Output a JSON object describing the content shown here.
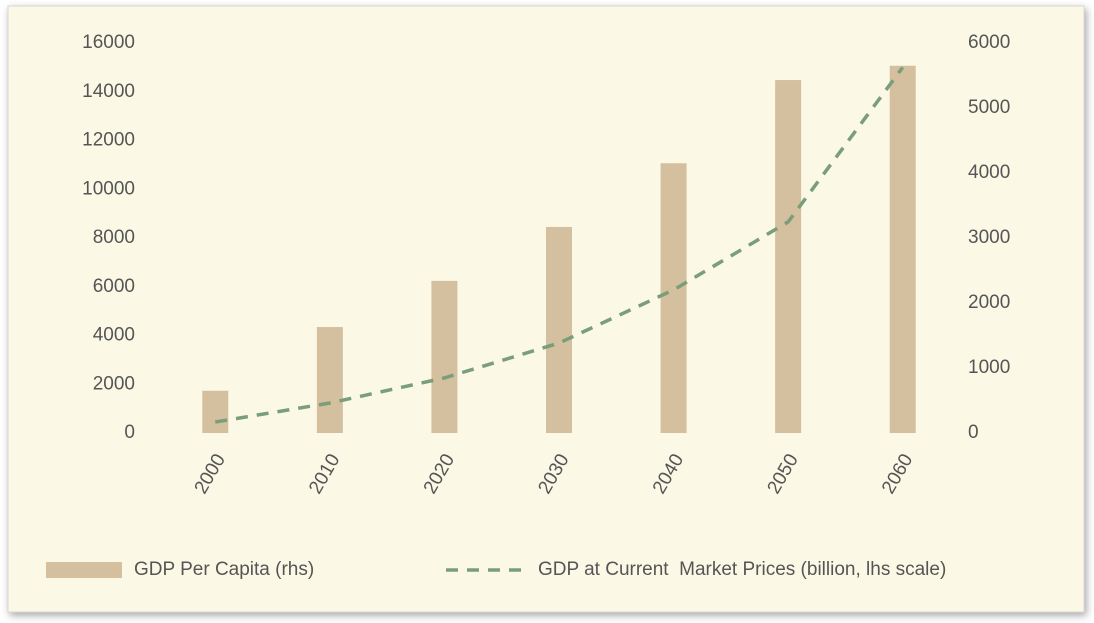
{
  "chart_data": {
    "type": "bar",
    "categories": [
      "2000",
      "2010",
      "2020",
      "2030",
      "2040",
      "2050",
      "2060"
    ],
    "series": [
      {
        "name": "GDP Per Capita (rhs)",
        "type": "bar",
        "axis": "y2",
        "color": "#d4bf9e",
        "values": [
          650,
          1630,
          2340,
          3170,
          4150,
          5430,
          5650
        ]
      },
      {
        "name": "GDP at Current  Market Prices (billion, lhs scale)",
        "type": "line",
        "axis": "y",
        "color": "#7a9e7a",
        "values": [
          450,
          1230,
          2260,
          3690,
          5870,
          8660,
          15000
        ]
      }
    ],
    "ylim": [
      0,
      16000
    ],
    "yticks": [
      0,
      2000,
      4000,
      6000,
      8000,
      10000,
      12000,
      14000,
      16000
    ],
    "y2lim": [
      0,
      6000
    ],
    "y2ticks": [
      0,
      1000,
      2000,
      3000,
      4000,
      5000,
      6000
    ],
    "grid": false,
    "legend": "bottom"
  }
}
